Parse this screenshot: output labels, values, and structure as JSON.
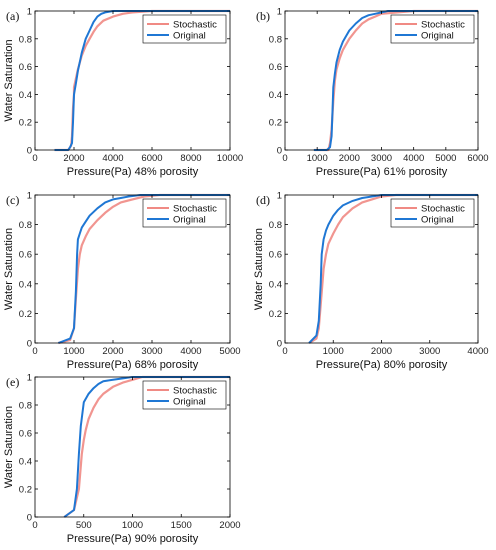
{
  "chart_data": [
    {
      "panel": "(a)",
      "type": "line",
      "xlabel": "Pressure(Pa) 48% porosity",
      "ylabel": "Water Saturation",
      "xlim": [
        0,
        10000
      ],
      "ylim": [
        0,
        1
      ],
      "xticks": [
        0,
        2000,
        4000,
        6000,
        8000,
        10000
      ],
      "yticks": [
        0,
        0.2,
        0.4,
        0.6,
        0.8,
        1
      ],
      "legend": "top-right",
      "series": [
        {
          "name": "Stochastic",
          "color": "#f08a84",
          "x": [
            1000,
            1700,
            1850,
            1900,
            1950,
            2000,
            2000,
            2200,
            2400,
            2600,
            2800,
            3000,
            3200,
            3500,
            4000,
            4500,
            5000,
            6000,
            8000,
            10000
          ],
          "y": [
            0,
            0,
            0.03,
            0.1,
            0.3,
            0.4,
            0.45,
            0.58,
            0.68,
            0.75,
            0.8,
            0.85,
            0.89,
            0.93,
            0.96,
            0.98,
            0.99,
            1,
            1,
            1
          ]
        },
        {
          "name": "Original",
          "color": "#1f77d4",
          "x": [
            1000,
            1700,
            1800,
            1900,
            1950,
            2000,
            2100,
            2200,
            2400,
            2600,
            2800,
            3000,
            3200,
            3400,
            3600,
            4000,
            5000,
            10000
          ],
          "y": [
            0,
            0,
            0.02,
            0.05,
            0.2,
            0.4,
            0.48,
            0.57,
            0.7,
            0.8,
            0.86,
            0.92,
            0.96,
            0.98,
            0.99,
            1,
            1,
            1
          ]
        }
      ]
    },
    {
      "panel": "(b)",
      "type": "line",
      "xlabel": "Pressure(Pa) 61% porosity",
      "ylabel": "",
      "xlim": [
        0,
        6000
      ],
      "ylim": [
        0,
        1
      ],
      "xticks": [
        0,
        1000,
        2000,
        3000,
        4000,
        5000,
        6000
      ],
      "yticks": [
        0,
        0.2,
        0.4,
        0.6,
        0.8,
        1
      ],
      "legend": "top-right",
      "series": [
        {
          "name": "Stochastic",
          "color": "#f08a84",
          "x": [
            900,
            1350,
            1400,
            1450,
            1500,
            1550,
            1600,
            1700,
            1800,
            2000,
            2200,
            2400,
            2600,
            2800,
            3000,
            3500,
            4000,
            6000
          ],
          "y": [
            0,
            0,
            0.05,
            0.15,
            0.35,
            0.5,
            0.58,
            0.66,
            0.72,
            0.8,
            0.86,
            0.91,
            0.94,
            0.96,
            0.98,
            0.99,
            1,
            1
          ]
        },
        {
          "name": "Original",
          "color": "#1f77d4",
          "x": [
            900,
            1300,
            1400,
            1450,
            1480,
            1500,
            1550,
            1600,
            1700,
            1800,
            2000,
            2200,
            2400,
            2600,
            2800,
            3000,
            3200,
            6000
          ],
          "y": [
            0,
            0,
            0.02,
            0.1,
            0.3,
            0.45,
            0.55,
            0.63,
            0.72,
            0.78,
            0.86,
            0.91,
            0.95,
            0.97,
            0.98,
            0.99,
            1,
            1
          ]
        }
      ]
    },
    {
      "panel": "(c)",
      "type": "line",
      "xlabel": "Pressure(Pa) 68% porosity",
      "ylabel": "Water Saturation",
      "xlim": [
        0,
        5000
      ],
      "ylim": [
        0,
        1
      ],
      "xticks": [
        0,
        1000,
        2000,
        3000,
        4000,
        5000
      ],
      "yticks": [
        0,
        0.2,
        0.4,
        0.6,
        0.8,
        1
      ],
      "legend": "top-right",
      "series": [
        {
          "name": "Stochastic",
          "color": "#f08a84",
          "x": [
            600,
            900,
            1000,
            1050,
            1100,
            1150,
            1200,
            1300,
            1400,
            1600,
            1800,
            2000,
            2200,
            2500,
            2800,
            3200,
            5000
          ],
          "y": [
            0,
            0.02,
            0.1,
            0.3,
            0.5,
            0.6,
            0.66,
            0.72,
            0.77,
            0.83,
            0.88,
            0.92,
            0.95,
            0.97,
            0.99,
            1,
            1
          ]
        },
        {
          "name": "Original",
          "color": "#1f77d4",
          "x": [
            600,
            900,
            1000,
            1050,
            1080,
            1100,
            1150,
            1200,
            1300,
            1400,
            1600,
            1800,
            2000,
            2200,
            2400,
            2700,
            5000
          ],
          "y": [
            0,
            0.03,
            0.1,
            0.35,
            0.6,
            0.7,
            0.74,
            0.78,
            0.82,
            0.86,
            0.91,
            0.95,
            0.97,
            0.98,
            0.99,
            1,
            1
          ]
        }
      ]
    },
    {
      "panel": "(d)",
      "type": "line",
      "xlabel": "Pressure(Pa) 80% porosity",
      "ylabel": "Water Saturation",
      "xlim": [
        0,
        4000
      ],
      "ylim": [
        0,
        1
      ],
      "xticks": [
        0,
        1000,
        2000,
        3000,
        4000
      ],
      "yticks": [
        0,
        0.2,
        0.4,
        0.6,
        0.8,
        1
      ],
      "legend": "top-right",
      "series": [
        {
          "name": "Stochastic",
          "color": "#f08a84",
          "x": [
            500,
            650,
            700,
            750,
            800,
            850,
            900,
            1000,
            1100,
            1200,
            1400,
            1600,
            1800,
            2000,
            2300,
            4000
          ],
          "y": [
            0,
            0.03,
            0.1,
            0.3,
            0.5,
            0.6,
            0.67,
            0.74,
            0.8,
            0.85,
            0.91,
            0.95,
            0.97,
            0.99,
            1,
            1
          ]
        },
        {
          "name": "Original",
          "color": "#1f77d4",
          "x": [
            500,
            650,
            700,
            740,
            760,
            800,
            850,
            900,
            1000,
            1100,
            1200,
            1400,
            1600,
            1800,
            2000,
            4000
          ],
          "y": [
            0,
            0.05,
            0.15,
            0.4,
            0.6,
            0.7,
            0.76,
            0.8,
            0.86,
            0.9,
            0.93,
            0.96,
            0.98,
            0.99,
            1,
            1
          ]
        }
      ]
    },
    {
      "panel": "(e)",
      "type": "line",
      "xlabel": "Pressure(Pa) 90% porosity",
      "ylabel": "Water Saturation",
      "xlim": [
        0,
        2000
      ],
      "ylim": [
        0,
        1
      ],
      "xticks": [
        0,
        500,
        1000,
        1500,
        2000
      ],
      "yticks": [
        0,
        0.2,
        0.4,
        0.6,
        0.8,
        1
      ],
      "legend": "top-right",
      "series": [
        {
          "name": "Stochastic",
          "color": "#f08a84",
          "x": [
            300,
            400,
            450,
            480,
            500,
            520,
            550,
            600,
            650,
            700,
            800,
            900,
            1000,
            1100,
            2000
          ],
          "y": [
            0,
            0.05,
            0.2,
            0.45,
            0.55,
            0.62,
            0.7,
            0.78,
            0.84,
            0.88,
            0.93,
            0.96,
            0.98,
            1,
            1
          ]
        },
        {
          "name": "Original",
          "color": "#1f77d4",
          "x": [
            300,
            400,
            430,
            450,
            470,
            500,
            550,
            600,
            650,
            700,
            800,
            900,
            1000,
            2000
          ],
          "y": [
            0,
            0.05,
            0.2,
            0.45,
            0.65,
            0.82,
            0.88,
            0.92,
            0.95,
            0.97,
            0.98,
            0.99,
            1,
            1
          ]
        }
      ]
    }
  ]
}
